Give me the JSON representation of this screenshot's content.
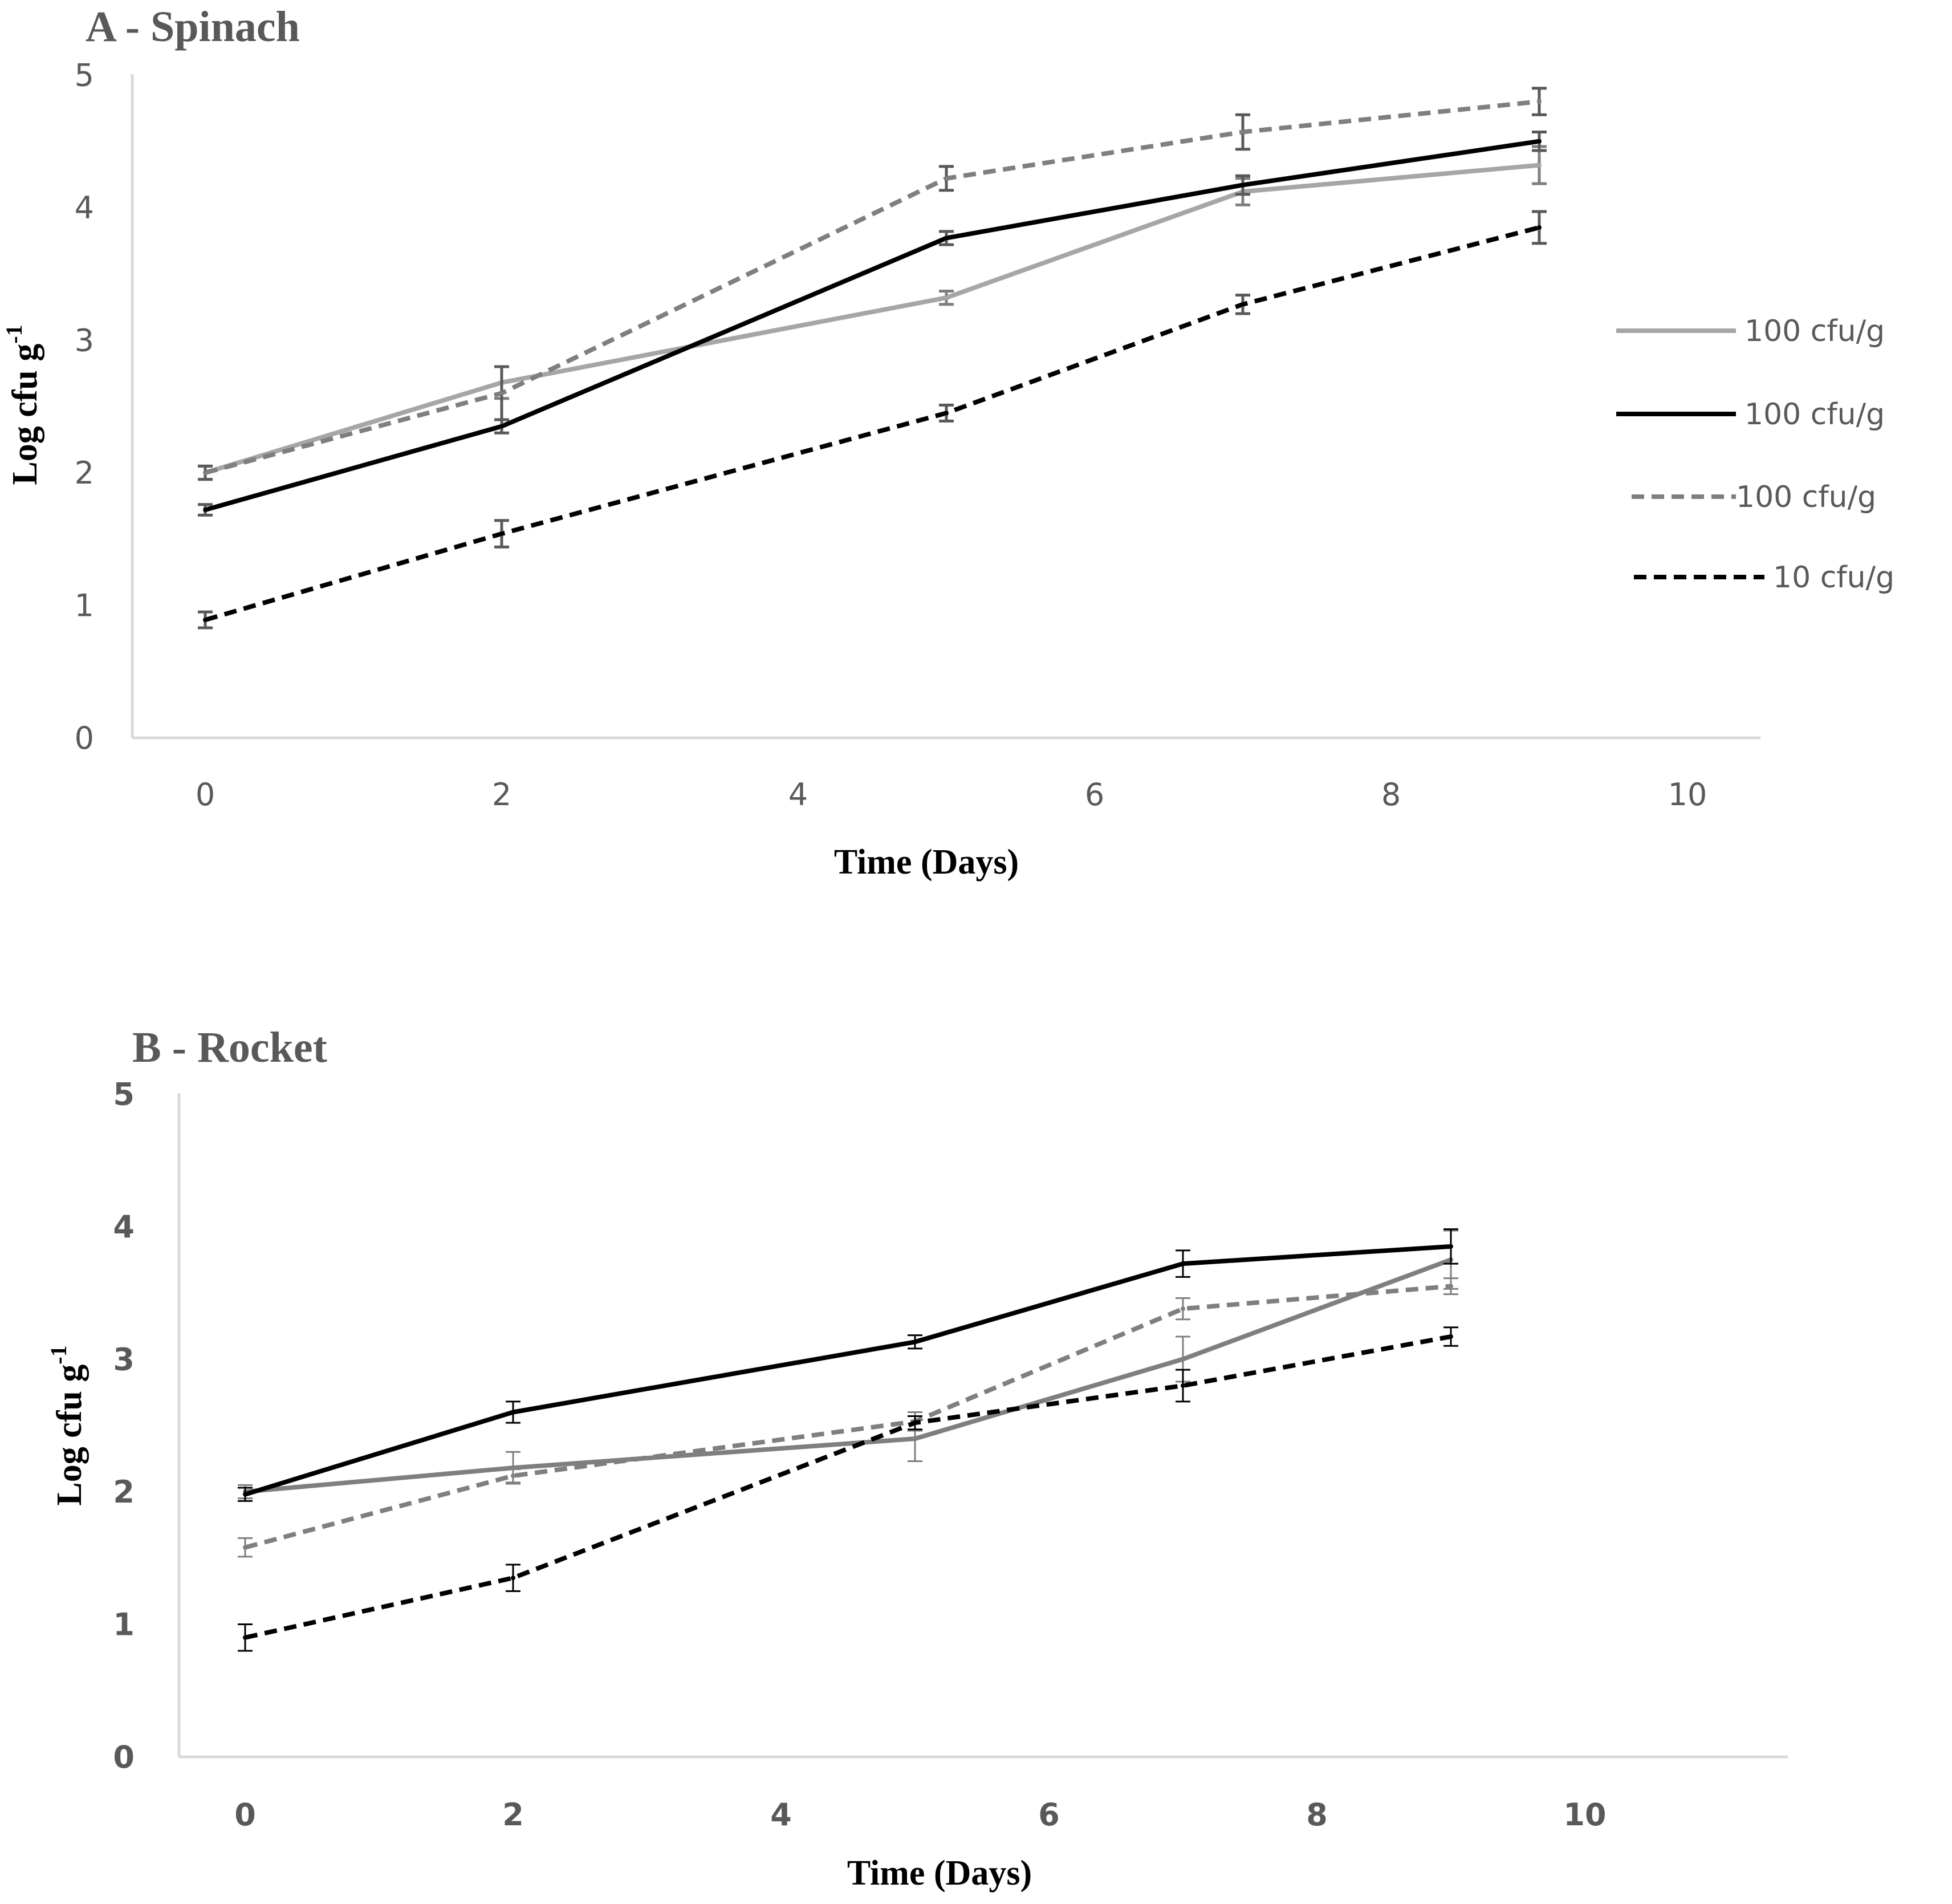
{
  "chart_data": [
    {
      "id": "A",
      "type": "line",
      "title": "A - Spinach",
      "xlabel": "Time (Days)",
      "ylabel_main": "Log cfu g",
      "ylabel_sup": "-1",
      "xlim": [
        0,
        10
      ],
      "ylim": [
        0,
        5
      ],
      "x_ticks": [
        "0",
        "2",
        "4",
        "6",
        "8",
        "10"
      ],
      "y_ticks": [
        "0",
        "1",
        "2",
        "3",
        "4",
        "5"
      ],
      "legend": {
        "placement": "right",
        "entries": [
          "100 cfu/g",
          "100 cfu/g",
          "100 cfu/g",
          "10 cfu/g"
        ]
      },
      "series": [
        {
          "name": "100 cfu/g",
          "color": "#a6a6a6",
          "dash": "solid",
          "x": [
            0,
            2,
            5,
            7,
            9
          ],
          "values": [
            2.0,
            2.68,
            3.32,
            4.12,
            4.32
          ],
          "errors": [
            0.05,
            0.12,
            0.05,
            0.1,
            0.14
          ]
        },
        {
          "name": "100 cfu/g",
          "color": "#000000",
          "dash": "solid",
          "x": [
            0,
            2,
            5,
            7,
            9
          ],
          "values": [
            1.72,
            2.35,
            3.77,
            4.17,
            4.5
          ],
          "errors": [
            0.04,
            0.05,
            0.05,
            0.07,
            0.07
          ]
        },
        {
          "name": "100 cfu/g",
          "color": "#7f7f7f",
          "dash": "dashed",
          "x": [
            0,
            2,
            5,
            7,
            9
          ],
          "values": [
            2.0,
            2.6,
            4.22,
            4.57,
            4.8
          ],
          "errors": [
            0.05,
            0.2,
            0.09,
            0.13,
            0.1
          ]
        },
        {
          "name": "10 cfu/g",
          "color": "#000000",
          "dash": "dashed",
          "x": [
            0,
            2,
            5,
            7,
            9
          ],
          "values": [
            0.89,
            1.54,
            2.45,
            3.27,
            3.85
          ],
          "errors": [
            0.06,
            0.1,
            0.06,
            0.07,
            0.12
          ]
        }
      ]
    },
    {
      "id": "B",
      "type": "line",
      "title": "B - Rocket",
      "xlabel": "Time (Days)",
      "ylabel_main": "Log cfu g",
      "ylabel_sup": "-1",
      "xlim": [
        0,
        11.5
      ],
      "ylim": [
        0,
        5
      ],
      "x_ticks": [
        "0",
        "2",
        "4",
        "6",
        "8",
        "10"
      ],
      "y_ticks": [
        "0",
        "1",
        "2",
        "3",
        "4",
        "5"
      ],
      "series": [
        {
          "name": "100 cfu/g",
          "color": "#7f7f7f",
          "dash": "solid",
          "x": [
            0,
            2,
            5,
            7,
            9
          ],
          "values": [
            2.0,
            2.18,
            2.4,
            3.0,
            3.75
          ],
          "errors": [
            0.05,
            0.12,
            0.17,
            0.17,
            0.22
          ]
        },
        {
          "name": "100 cfu/g",
          "color": "#000000",
          "dash": "solid",
          "x": [
            0,
            2,
            5,
            7,
            9
          ],
          "values": [
            1.98,
            2.6,
            3.13,
            3.72,
            3.85
          ],
          "errors": [
            0.05,
            0.08,
            0.05,
            0.1,
            0.13
          ]
        },
        {
          "name": "100 cfu/g",
          "color": "#7f7f7f",
          "dash": "dashed",
          "x": [
            0,
            2,
            5,
            7,
            9
          ],
          "values": [
            1.58,
            2.12,
            2.53,
            3.38,
            3.55
          ],
          "errors": [
            0.07,
            0.05,
            0.07,
            0.08,
            0.06
          ]
        },
        {
          "name": "10 cfu/g",
          "color": "#000000",
          "dash": "dashed",
          "x": [
            0,
            2,
            5,
            7,
            9
          ],
          "values": [
            0.9,
            1.35,
            2.52,
            2.8,
            3.17
          ],
          "errors": [
            0.1,
            0.1,
            0.05,
            0.12,
            0.07
          ]
        }
      ]
    }
  ]
}
